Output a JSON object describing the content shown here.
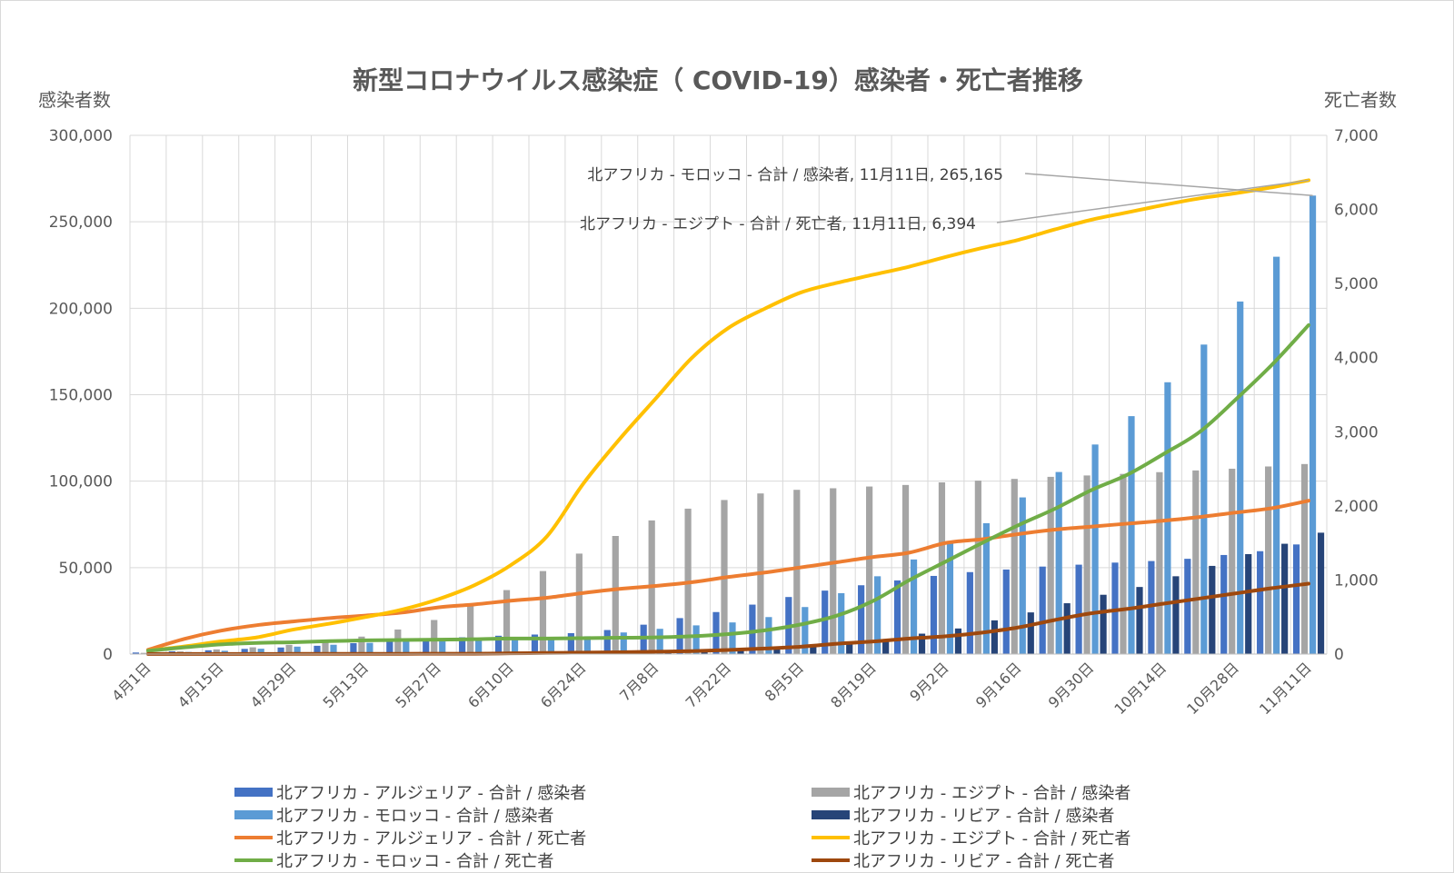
{
  "chart_data": {
    "type": "bar+line",
    "title": "新型コロナウイルス感染症（ COVID-19）感染者・死亡者推移",
    "ylabel_left": "感染者数",
    "ylabel_right": "死亡者数",
    "ylim_left": [
      0,
      300000
    ],
    "ylim_right": [
      0,
      7000
    ],
    "yticks_left": [
      "0",
      "50,000",
      "100,000",
      "150,000",
      "200,000",
      "250,000",
      "300,000"
    ],
    "yticks_right": [
      "0",
      "1,000",
      "2,000",
      "3,000",
      "4,000",
      "5,000",
      "6,000",
      "7,000"
    ],
    "categories": [
      "4月1日",
      "4月8日",
      "4月15日",
      "4月22日",
      "4月29日",
      "5月6日",
      "5月13日",
      "5月20日",
      "5月27日",
      "6月3日",
      "6月10日",
      "6月17日",
      "6月24日",
      "7月1日",
      "7月8日",
      "7月15日",
      "7月22日",
      "7月29日",
      "8月5日",
      "8月12日",
      "8月19日",
      "8月26日",
      "9月2日",
      "9月9日",
      "9月16日",
      "9月23日",
      "9月30日",
      "10月7日",
      "10月14日",
      "10月21日",
      "10月28日",
      "11月4日",
      "11月11日"
    ],
    "x_labels": [
      "4月1日",
      "",
      "4月15日",
      "",
      "4月29日",
      "",
      "5月13日",
      "",
      "5月27日",
      "",
      "6月10日",
      "",
      "6月24日",
      "",
      "7月8日",
      "",
      "7月22日",
      "",
      "8月5日",
      "",
      "8月19日",
      "",
      "9月2日",
      "",
      "9月16日",
      "",
      "9月30日",
      "",
      "10月14日",
      "",
      "10月28日",
      "",
      "11月11日"
    ],
    "bar_series": [
      {
        "name": "北アフリカ - アルジェリア - 合計 / 感染者",
        "axis": "left",
        "color": "#4472c4",
        "values": [
          900,
          1600,
          2200,
          3000,
          3800,
          4800,
          6300,
          7400,
          8900,
          9700,
          10600,
          11300,
          12100,
          13900,
          17000,
          20800,
          24300,
          28600,
          33000,
          36700,
          39800,
          42600,
          45200,
          47400,
          48900,
          50600,
          51700,
          52900,
          53800,
          55100,
          57300,
          59500,
          63400
        ]
      },
      {
        "name": "北アフリカ - エジプト - 合計 / 感染者",
        "axis": "left",
        "color": "#a5a5a5",
        "values": [
          700,
          1500,
          2700,
          3900,
          5300,
          7200,
          10100,
          14200,
          19700,
          28600,
          37000,
          48000,
          58100,
          68300,
          77300,
          84100,
          89100,
          92900,
          95000,
          95900,
          96900,
          97800,
          99300,
          100300,
          101300,
          102500,
          103300,
          104200,
          105200,
          106200,
          107200,
          108500,
          109900
        ]
      },
      {
        "name": "北アフリカ - モロッコ - 合計 / 感染者",
        "axis": "left",
        "color": "#5b9bd5",
        "values": [
          700,
          1200,
          1900,
          3100,
          4300,
          5400,
          6500,
          7300,
          7800,
          8000,
          8500,
          9100,
          10300,
          12500,
          14600,
          16600,
          18300,
          21400,
          27200,
          35200,
          45000,
          54700,
          64600,
          75700,
          90600,
          105300,
          121200,
          137600,
          157200,
          179000,
          203900,
          229800,
          265165
        ]
      },
      {
        "name": "北アフリカ - リビア - 合計 / 感染者",
        "axis": "left",
        "color": "#264478",
        "values": [
          10,
          20,
          40,
          60,
          60,
          70,
          70,
          70,
          80,
          130,
          400,
          500,
          700,
          1000,
          1400,
          1800,
          2600,
          3900,
          4600,
          6000,
          8700,
          11800,
          14800,
          19500,
          24100,
          29400,
          34300,
          38800,
          45000,
          51000,
          57800,
          63800,
          70200
        ]
      }
    ],
    "line_series": [
      {
        "name": "北アフリカ - アルジェリア - 合計 / 死亡者",
        "axis": "right",
        "color": "#ed7d31",
        "values": [
          58,
          205,
          315,
          390,
          440,
          485,
          520,
          560,
          630,
          670,
          720,
          760,
          825,
          880,
          920,
          970,
          1040,
          1100,
          1170,
          1240,
          1310,
          1370,
          1500,
          1550,
          1620,
          1680,
          1720,
          1760,
          1800,
          1850,
          1910,
          1970,
          2070
        ]
      },
      {
        "name": "北アフリカ - エジプト - 合計 / 死亡者",
        "axis": "right",
        "color": "#ffc000",
        "values": [
          46,
          103,
          170,
          225,
          330,
          410,
          500,
          600,
          740,
          930,
          1200,
          1590,
          2300,
          2900,
          3450,
          4000,
          4400,
          4660,
          4880,
          5010,
          5120,
          5230,
          5360,
          5480,
          5590,
          5730,
          5860,
          5960,
          6060,
          6150,
          6220,
          6300,
          6394
        ]
      },
      {
        "name": "北アフリカ - モロッコ - 合計 / 死亡者",
        "axis": "right",
        "color": "#70ad47",
        "values": [
          44,
          90,
          130,
          150,
          160,
          175,
          185,
          190,
          195,
          200,
          210,
          210,
          215,
          220,
          225,
          240,
          270,
          320,
          400,
          520,
          720,
          1000,
          1250,
          1500,
          1740,
          1960,
          2210,
          2420,
          2700,
          3000,
          3440,
          3910,
          4440
        ]
      },
      {
        "name": "北アフリカ - リビア - 合計 / 死亡者",
        "axis": "right",
        "color": "#9e480e",
        "values": [
          1,
          1,
          1,
          1,
          3,
          3,
          3,
          3,
          5,
          5,
          10,
          15,
          20,
          25,
          32,
          40,
          55,
          75,
          100,
          140,
          170,
          210,
          240,
          290,
          360,
          460,
          550,
          610,
          680,
          750,
          820,
          890,
          950
        ]
      }
    ],
    "annotations": [
      {
        "text": "北アフリカ - モロッコ - 合計 / 感染者, 11月11日, 265,165",
        "series": 2,
        "point": 32
      },
      {
        "text": "北アフリカ - エジプト - 合計 / 死亡者, 11月11日, 6,394",
        "series": 1,
        "point": 32
      }
    ],
    "grid": true,
    "legend_position": "bottom"
  }
}
